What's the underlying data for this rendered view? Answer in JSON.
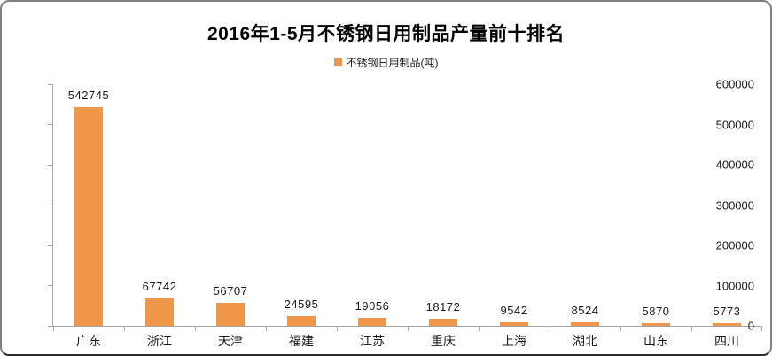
{
  "chart_data": {
    "type": "bar",
    "title": "2016年1-5月不锈钢日用制品产量前十排名",
    "legend": "不锈钢日用制品(吨)",
    "categories": [
      "广东",
      "浙江",
      "天津",
      "福建",
      "江苏",
      "重庆",
      "上海",
      "湖北",
      "山东",
      "四川"
    ],
    "values": [
      542745,
      67742,
      56707,
      24595,
      19056,
      18172,
      9542,
      8524,
      5870,
      5773
    ],
    "xlabel": "",
    "ylabel": "",
    "ylim": [
      0,
      600000
    ],
    "ytick_step": 100000,
    "ytick_labels": [
      "0",
      "100000",
      "200000",
      "300000",
      "400000",
      "500000",
      "600000"
    ],
    "grid": false,
    "legend_position": "top-center",
    "bar_color": "#f0964b",
    "axis_color": "#a6a6a6"
  }
}
